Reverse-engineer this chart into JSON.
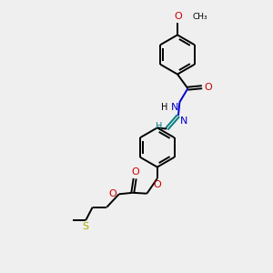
{
  "bg_color": "#efefef",
  "bond_color": "#000000",
  "N_color": "#0000cc",
  "O_color": "#cc0000",
  "S_color": "#aaaa00",
  "teal_color": "#008080",
  "line_width": 1.4,
  "figsize": [
    3.0,
    3.0
  ],
  "dpi": 100,
  "xlim": [
    0,
    10
  ],
  "ylim": [
    0,
    10
  ]
}
